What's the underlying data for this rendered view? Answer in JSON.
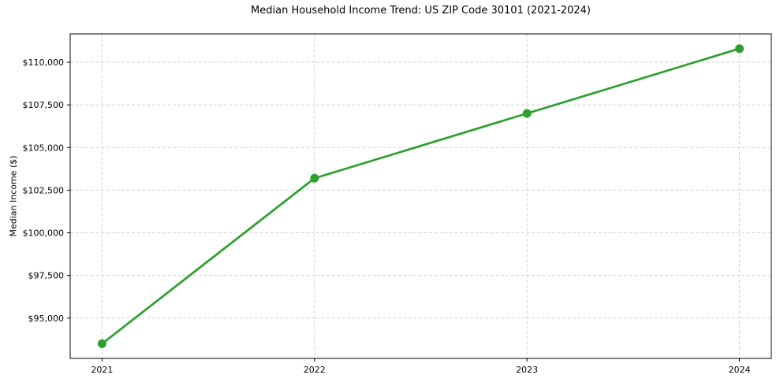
{
  "chart_data": {
    "type": "line",
    "title": "Median Household Income Trend: US ZIP Code 30101 (2021-2024)",
    "xlabel": "",
    "ylabel": "Median Income ($)",
    "x": [
      2021,
      2022,
      2023,
      2024
    ],
    "x_tick_labels": [
      "2021",
      "2022",
      "2023",
      "2024"
    ],
    "series": [
      {
        "name": "Median Household Income",
        "values": [
          93500,
          103200,
          107000,
          110800
        ]
      }
    ],
    "y_ticks": [
      95000,
      97500,
      100000,
      102500,
      105000,
      107500,
      110000
    ],
    "y_tick_labels": [
      "$95,000",
      "$97,500",
      "$100,000",
      "$102,500",
      "$105,000",
      "$107,500",
      "$110,000"
    ],
    "xlim": [
      2020.85,
      2024.15
    ],
    "ylim": [
      92635,
      111665
    ],
    "grid": true,
    "legend": "none",
    "colors": {
      "line": "#2ca02c",
      "marker": "#2ca02c",
      "grid": "#d3d3d3",
      "frame": "#000000",
      "tick": "#000000",
      "background": "#ffffff"
    }
  }
}
